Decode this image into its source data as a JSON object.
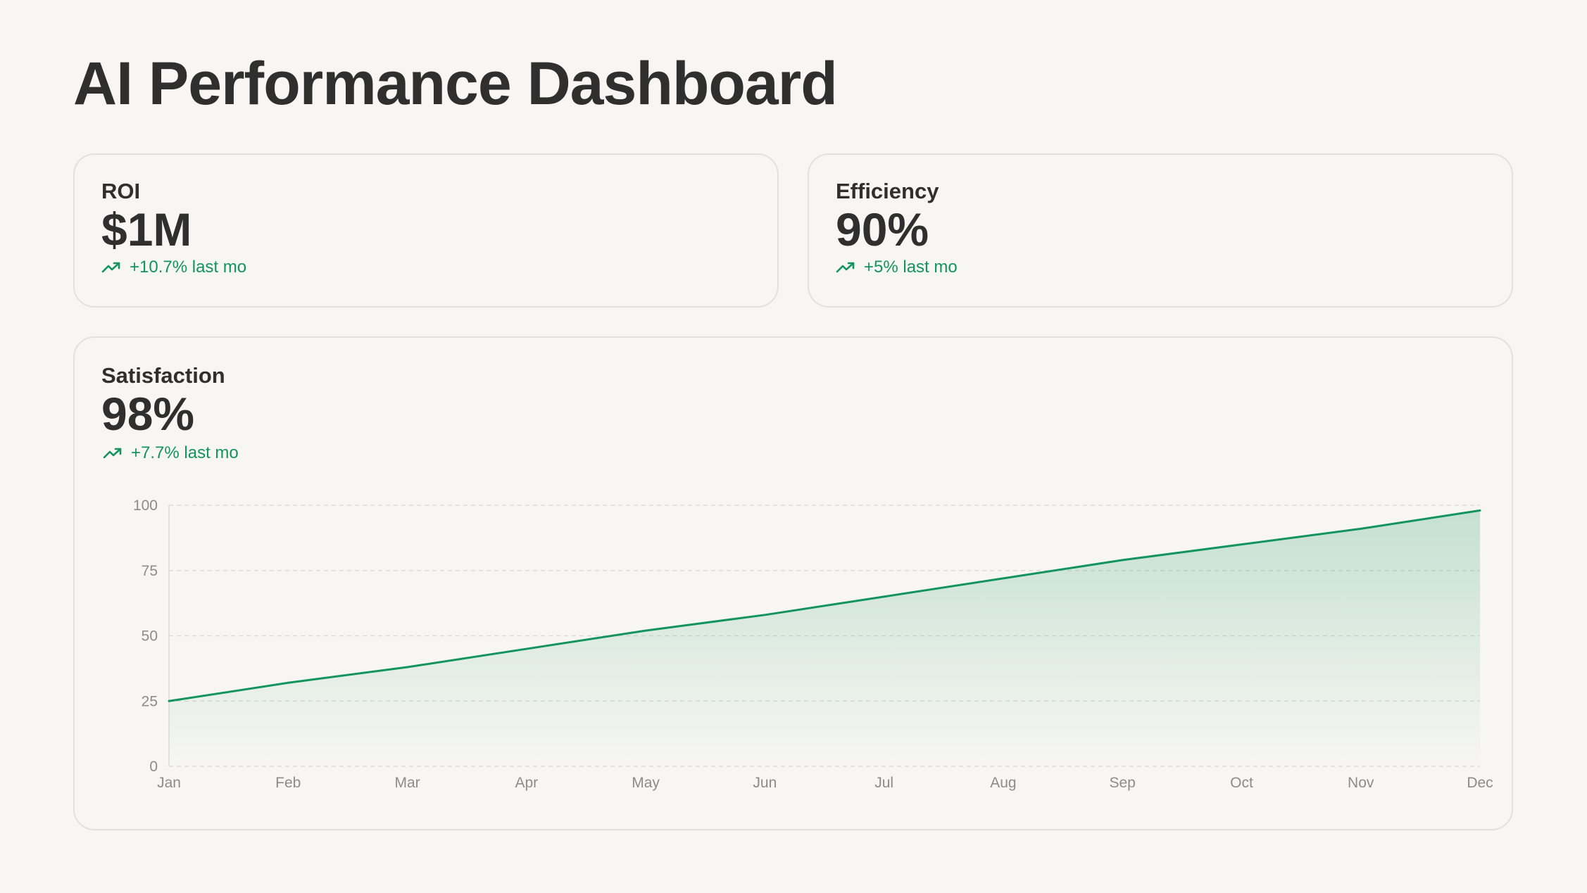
{
  "page": {
    "title": "AI Performance Dashboard"
  },
  "colors": {
    "accent": "#13945d",
    "text": "#2f2f2f",
    "background": "#f7f6f2",
    "border": "#e2e1dd",
    "grid": "#dcdbd7",
    "tick": "#8c8c8c"
  },
  "cards": {
    "roi": {
      "label": "ROI",
      "value": "$1M",
      "change": "+10.7% last mo",
      "icon": "trending-up-icon"
    },
    "efficiency": {
      "label": "Efficiency",
      "value": "90%",
      "change": "+5% last mo",
      "icon": "trending-up-icon"
    },
    "satisfaction": {
      "label": "Satisfaction",
      "value": "98%",
      "change": "+7.7% last mo",
      "icon": "trending-up-icon"
    }
  },
  "chart_data": {
    "type": "area",
    "categories": [
      "Jan",
      "Feb",
      "Mar",
      "Apr",
      "May",
      "Jun",
      "Jul",
      "Aug",
      "Sep",
      "Oct",
      "Nov",
      "Dec"
    ],
    "series": [
      {
        "values": [
          25,
          32,
          38,
          45,
          52,
          58,
          65,
          72,
          79,
          85,
          91,
          98
        ]
      }
    ],
    "ylim": [
      0,
      100
    ],
    "yticks": [
      0,
      25,
      50,
      75,
      100
    ],
    "grid": true,
    "gridStyle": "dashed",
    "title": "",
    "xlabel": "",
    "ylabel": ""
  }
}
